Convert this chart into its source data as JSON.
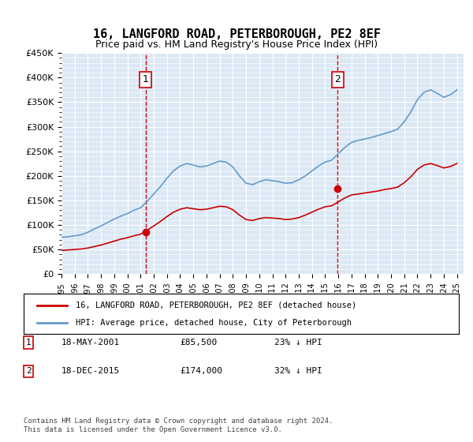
{
  "title": "16, LANGFORD ROAD, PETERBOROUGH, PE2 8EF",
  "subtitle": "Price paid vs. HM Land Registry's House Price Index (HPI)",
  "background_color": "#dce9f5",
  "plot_bg_color": "#dce9f5",
  "ylim": [
    0,
    450000
  ],
  "yticks": [
    0,
    50000,
    100000,
    150000,
    200000,
    250000,
    300000,
    350000,
    400000,
    450000
  ],
  "xlim_start": 1995.0,
  "xlim_end": 2025.5,
  "transaction1_x": 2001.38,
  "transaction1_y": 85500,
  "transaction2_x": 2015.96,
  "transaction2_y": 174000,
  "legend_line1": "16, LANGFORD ROAD, PETERBOROUGH, PE2 8EF (detached house)",
  "legend_line2": "HPI: Average price, detached house, City of Peterborough",
  "note1_label": "1",
  "note1_date": "18-MAY-2001",
  "note1_price": "£85,500",
  "note1_pct": "23% ↓ HPI",
  "note2_label": "2",
  "note2_date": "18-DEC-2015",
  "note2_price": "£174,000",
  "note2_pct": "32% ↓ HPI",
  "footer": "Contains HM Land Registry data © Crown copyright and database right 2024.\nThis data is licensed under the Open Government Licence v3.0.",
  "red_color": "#cc0000",
  "blue_color": "#6699cc",
  "hpi_years": [
    1995,
    1995.5,
    1996,
    1996.5,
    1997,
    1997.5,
    1998,
    1998.5,
    1999,
    1999.5,
    2000,
    2000.5,
    2001,
    2001.5,
    2002,
    2002.5,
    2003,
    2003.5,
    2004,
    2004.5,
    2005,
    2005.5,
    2006,
    2006.5,
    2007,
    2007.5,
    2008,
    2008.5,
    2009,
    2009.5,
    2010,
    2010.5,
    2011,
    2011.5,
    2012,
    2012.5,
    2013,
    2013.5,
    2014,
    2014.5,
    2015,
    2015.5,
    2016,
    2016.5,
    2017,
    2017.5,
    2018,
    2018.5,
    2019,
    2019.5,
    2020,
    2020.5,
    2021,
    2021.5,
    2022,
    2022.5,
    2023,
    2023.5,
    2024,
    2024.5,
    2025
  ],
  "hpi_values": [
    75000,
    76000,
    78000,
    80000,
    85000,
    92000,
    98000,
    105000,
    112000,
    118000,
    123000,
    130000,
    135000,
    148000,
    163000,
    178000,
    195000,
    210000,
    220000,
    225000,
    222000,
    218000,
    220000,
    225000,
    230000,
    228000,
    218000,
    200000,
    185000,
    182000,
    188000,
    192000,
    190000,
    188000,
    185000,
    186000,
    192000,
    200000,
    210000,
    220000,
    228000,
    232000,
    245000,
    258000,
    268000,
    272000,
    275000,
    278000,
    282000,
    286000,
    290000,
    295000,
    310000,
    330000,
    355000,
    370000,
    375000,
    368000,
    360000,
    365000,
    375000
  ],
  "red_years": [
    1995,
    1995.5,
    1996,
    1996.5,
    1997,
    1997.5,
    1998,
    1998.5,
    1999,
    1999.5,
    2000,
    2000.5,
    2001,
    2001.5,
    2002,
    2002.5,
    2003,
    2003.5,
    2004,
    2004.5,
    2005,
    2005.5,
    2006,
    2006.5,
    2007,
    2007.5,
    2008,
    2008.5,
    2009,
    2009.5,
    2010,
    2010.5,
    2011,
    2011.5,
    2012,
    2012.5,
    2013,
    2013.5,
    2014,
    2014.5,
    2015,
    2015.5,
    2016,
    2016.5,
    2017,
    2017.5,
    2018,
    2018.5,
    2019,
    2019.5,
    2020,
    2020.5,
    2021,
    2021.5,
    2022,
    2022.5,
    2023,
    2023.5,
    2024,
    2024.5,
    2025
  ],
  "red_values": [
    48000,
    49000,
    50000,
    51000,
    53000,
    56000,
    59000,
    63000,
    67000,
    71000,
    74000,
    78000,
    81000,
    89000,
    98000,
    107000,
    117000,
    126000,
    132000,
    135000,
    133000,
    131000,
    132000,
    135000,
    138000,
    137000,
    131000,
    120000,
    111000,
    109000,
    113000,
    115000,
    114000,
    113000,
    111000,
    112000,
    115000,
    120000,
    126000,
    132000,
    137000,
    139000,
    147000,
    155000,
    161000,
    163000,
    165000,
    167000,
    169000,
    172000,
    174000,
    177000,
    186000,
    198000,
    213000,
    222000,
    225000,
    221000,
    216000,
    219000,
    225000
  ]
}
